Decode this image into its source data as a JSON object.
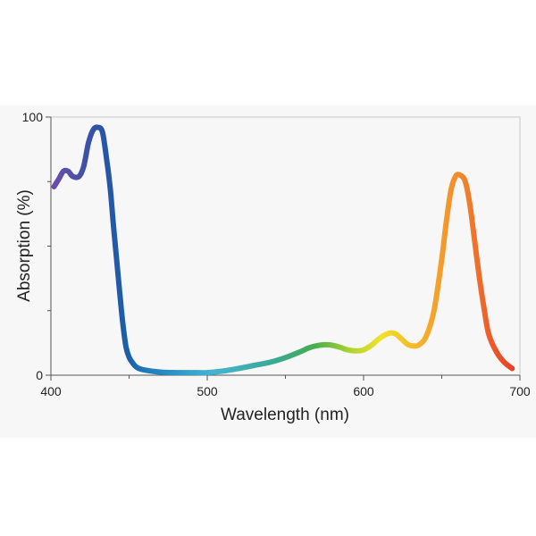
{
  "chart_data": {
    "type": "line",
    "title": "",
    "xlabel": "Wavelength (nm)",
    "ylabel": "Absorption (%)",
    "xlim": [
      400,
      700
    ],
    "ylim": [
      0,
      100
    ],
    "x_ticks": [
      400,
      500,
      600,
      700
    ],
    "x_minor_ticks": [
      450,
      550,
      650
    ],
    "y_ticks": [
      0,
      100
    ],
    "y_minor_ticks": [
      25,
      50,
      75
    ],
    "grid": false,
    "legend": "none",
    "line_color": "spectral gradient (violet to red)",
    "series": [
      {
        "x": [
          402,
          405,
          408,
          411,
          414,
          418,
          421,
          424,
          427,
          430,
          433,
          436,
          438,
          440,
          442,
          444,
          446,
          448,
          450,
          452,
          455,
          460,
          470,
          480,
          490,
          500,
          510,
          520,
          530,
          540,
          550,
          560,
          565,
          570,
          575,
          580,
          585,
          590,
          595,
          600,
          605,
          610,
          615,
          618,
          621,
          625,
          628,
          631,
          635,
          640,
          645,
          650,
          653,
          656,
          659,
          662,
          665,
          668,
          671,
          674,
          677,
          680,
          685,
          690,
          695
        ],
        "y": [
          73,
          76,
          79,
          79,
          77,
          77,
          81,
          90,
          95,
          96,
          94,
          82,
          72,
          58,
          45,
          32,
          20,
          11,
          7,
          5,
          3,
          2,
          1.2,
          1,
          1,
          1,
          1.6,
          2.6,
          3.8,
          5,
          6.8,
          9.2,
          10.6,
          11.4,
          11.8,
          11.6,
          10.8,
          9.8,
          9.4,
          9.8,
          11.6,
          14.2,
          16,
          16.4,
          15.8,
          13.6,
          12,
          11.4,
          11.6,
          15,
          25,
          45,
          60,
          72,
          77.2,
          77.4,
          75,
          66,
          52,
          38,
          26,
          16,
          9,
          5,
          2.6
        ]
      }
    ]
  }
}
